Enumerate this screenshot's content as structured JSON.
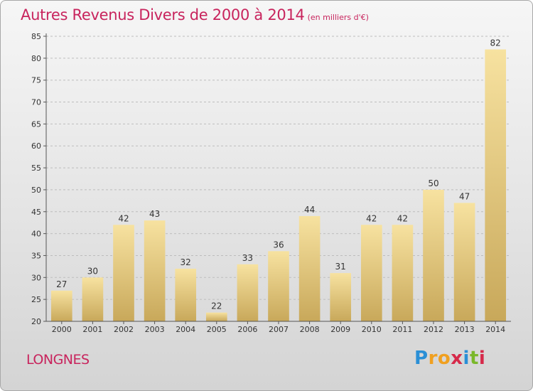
{
  "title": "Autres Revenus Divers de 2000 à 2014",
  "subtitle": "(en milliers d'€)",
  "commune": "LONGNES",
  "brand": {
    "letters": [
      "P",
      "r",
      "o",
      "x",
      "i",
      "t",
      "i"
    ],
    "colors": [
      "#2a8fd6",
      "#f0a020",
      "#f0a020",
      "#d62a4a",
      "#2a8fd6",
      "#7ab82a",
      "#d62a4a"
    ]
  },
  "colors": {
    "title": "#c8245d",
    "bar_top": "#f7e2a0",
    "bar_bottom": "#c8a85a",
    "axis": "#555555",
    "grid": "#bdbdbd"
  },
  "chart_data": {
    "type": "bar",
    "categories": [
      "2000",
      "2001",
      "2002",
      "2003",
      "2004",
      "2005",
      "2006",
      "2007",
      "2008",
      "2009",
      "2010",
      "2011",
      "2012",
      "2013",
      "2014"
    ],
    "values": [
      27,
      30,
      42,
      43,
      32,
      22,
      33,
      36,
      44,
      31,
      42,
      42,
      50,
      47,
      82
    ],
    "ylim": [
      20,
      85
    ],
    "yticks": [
      20,
      25,
      30,
      35,
      40,
      45,
      50,
      55,
      60,
      65,
      70,
      75,
      80,
      85
    ],
    "grid": "horizontal dashed"
  }
}
